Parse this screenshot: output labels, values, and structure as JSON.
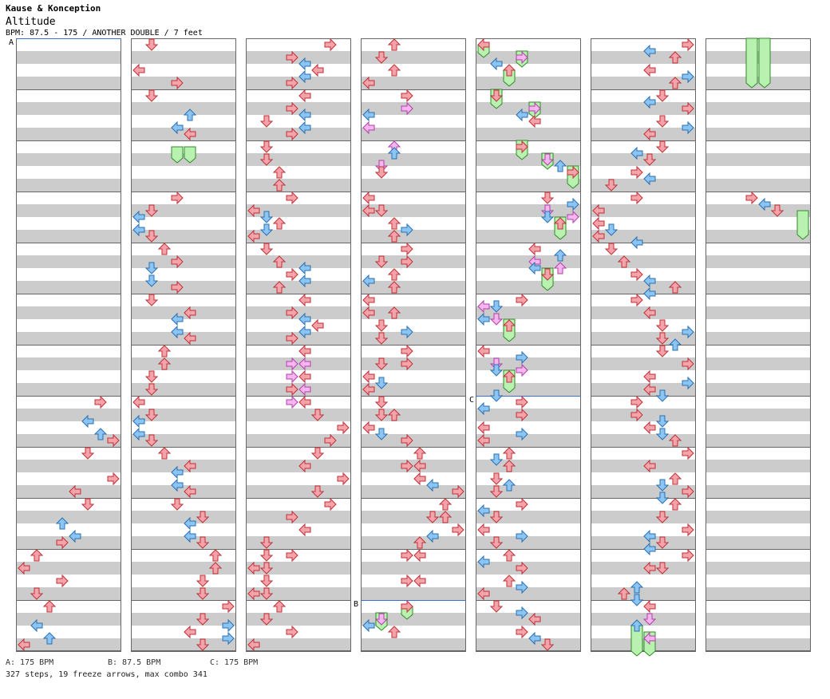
{
  "header": {
    "artist": "Kause & Konception",
    "title": "Altitude",
    "info": "BPM: 87.5 - 175 / ANOTHER DOUBLE / 7 feet"
  },
  "footer": {
    "bpm_a": "A: 175 BPM",
    "bpm_b": "B: 87.5 BPM",
    "bpm_c": "C: 175 BPM",
    "summary": "327 steps, 19 freeze arrows, max combo 341"
  },
  "markers": {
    "a": "A",
    "b": "B",
    "c": "C"
  },
  "colors": {
    "red": "#f4a3a8",
    "red_stroke": "#c0303a",
    "blue": "#8cc4f2",
    "blue_stroke": "#2a6fb5",
    "pink": "#f5b6f0",
    "pink_stroke": "#b040a8",
    "green": "#b9f2b0",
    "green_stroke": "#2f8a2a",
    "band": "#cccccc",
    "bpm_line": "#3a6fd8"
  }
}
